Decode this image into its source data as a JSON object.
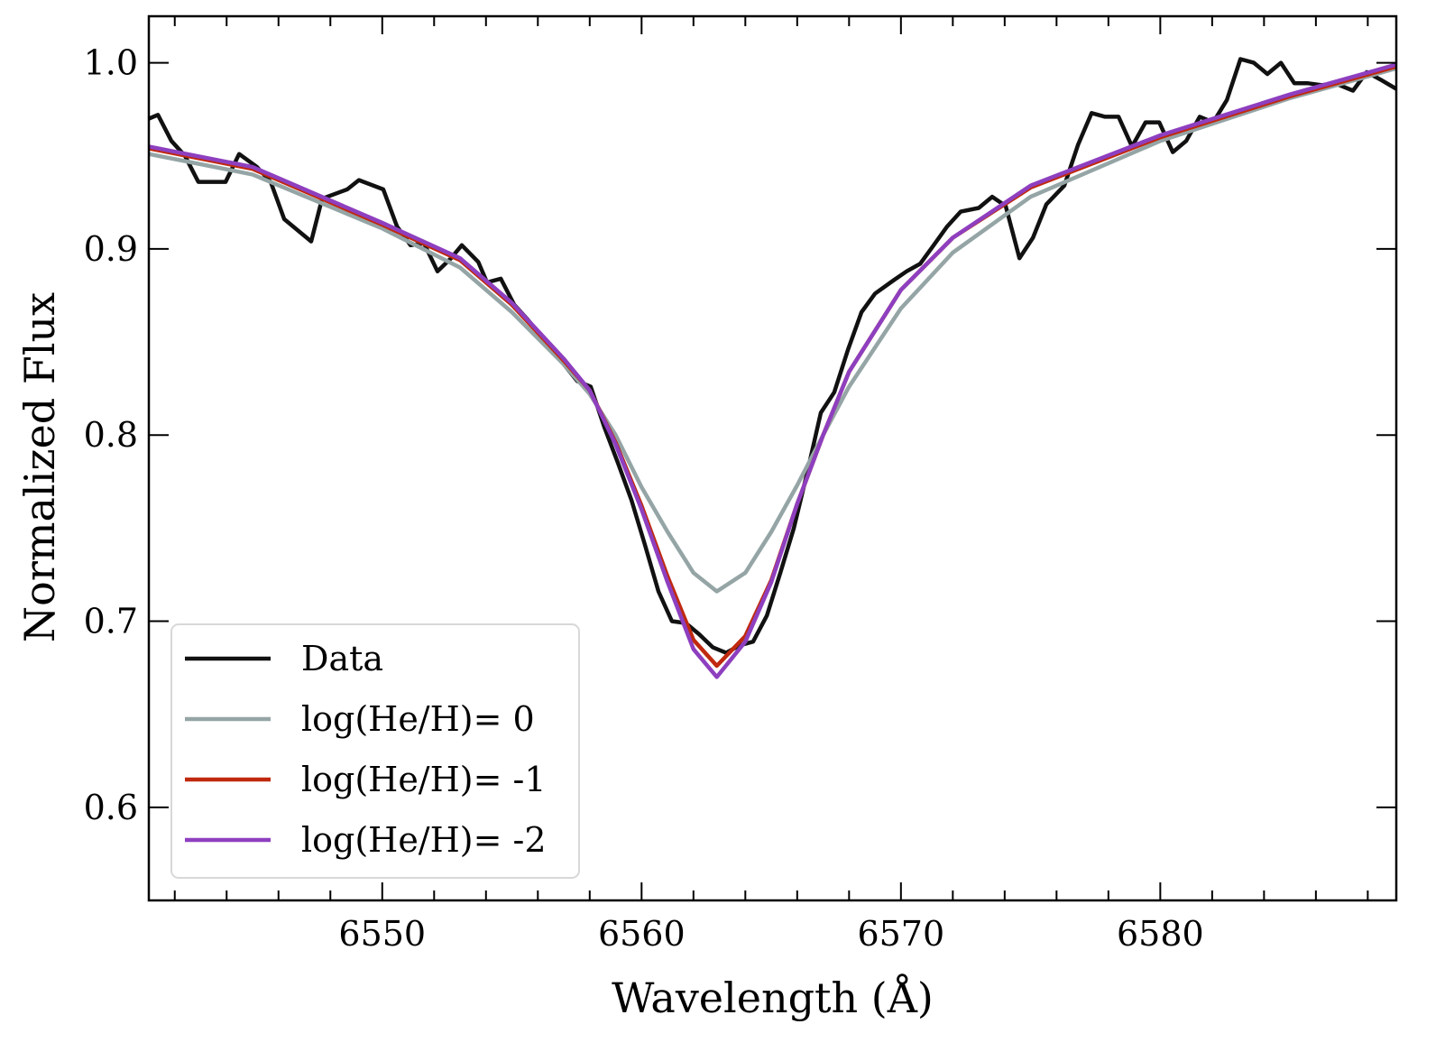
{
  "chart_data": {
    "type": "line",
    "title": "",
    "xlabel": "Wavelength (Å)",
    "ylabel": "Normalized Flux",
    "xlim": [
      6541,
      6589.1
    ],
    "ylim": [
      0.55,
      1.025
    ],
    "xticks": [
      6550,
      6560,
      6570,
      6580
    ],
    "xtick_labels": [
      "6550",
      "6560",
      "6570",
      "6580"
    ],
    "x_minor_step": 2,
    "yticks": [
      0.6,
      0.7,
      0.8,
      0.9,
      1.0
    ],
    "ytick_labels": [
      "0.6",
      "0.7",
      "0.8",
      "0.9",
      "1.0"
    ],
    "grid": false,
    "legend_position": "lower-left",
    "series": [
      {
        "name": "Data",
        "color": "#111111",
        "x": [
          6541.0,
          6541.35,
          6541.87,
          6542.39,
          6542.91,
          6543.96,
          6544.48,
          6545.17,
          6545.7,
          6546.22,
          6547.26,
          6547.68,
          6548.65,
          6549.1,
          6550.04,
          6550.57,
          6551.09,
          6551.61,
          6552.13,
          6552.65,
          6553.07,
          6553.7,
          6554.04,
          6554.57,
          6555.09,
          6555.61,
          6556.13,
          6556.83,
          6557.52,
          6558.04,
          6558.57,
          6559.09,
          6559.61,
          6560.13,
          6560.65,
          6561.17,
          6561.7,
          6562.22,
          6562.74,
          6563.26,
          6563.78,
          6564.3,
          6564.83,
          6565.35,
          6565.87,
          6566.39,
          6566.91,
          6567.43,
          6567.96,
          6568.48,
          6569.0,
          6569.7,
          6570.22,
          6570.74,
          6571.26,
          6571.78,
          6572.3,
          6573.0,
          6573.52,
          6574.04,
          6574.57,
          6575.09,
          6575.61,
          6576.3,
          6576.83,
          6577.35,
          6577.87,
          6578.39,
          6578.91,
          6579.43,
          6579.96,
          6580.48,
          6581.0,
          6581.52,
          6582.04,
          6582.57,
          6583.09,
          6583.61,
          6584.13,
          6584.65,
          6585.17,
          6585.7,
          6586.22,
          6586.74,
          6587.43,
          6587.96,
          6588.48,
          6589.1
        ],
        "y": [
          0.97,
          0.972,
          0.958,
          0.95,
          0.936,
          0.936,
          0.951,
          0.944,
          0.936,
          0.916,
          0.904,
          0.927,
          0.932,
          0.937,
          0.932,
          0.912,
          0.902,
          0.903,
          0.888,
          0.895,
          0.902,
          0.893,
          0.882,
          0.884,
          0.87,
          0.862,
          0.853,
          0.841,
          0.829,
          0.826,
          0.804,
          0.785,
          0.765,
          0.741,
          0.716,
          0.7,
          0.699,
          0.693,
          0.686,
          0.683,
          0.687,
          0.689,
          0.703,
          0.726,
          0.75,
          0.78,
          0.812,
          0.823,
          0.846,
          0.866,
          0.876,
          0.883,
          0.888,
          0.892,
          0.902,
          0.912,
          0.92,
          0.922,
          0.928,
          0.923,
          0.895,
          0.906,
          0.924,
          0.934,
          0.956,
          0.973,
          0.971,
          0.971,
          0.955,
          0.968,
          0.968,
          0.952,
          0.958,
          0.971,
          0.968,
          0.98,
          1.002,
          1.0,
          0.994,
          1.0,
          0.989,
          0.989,
          0.988,
          0.989,
          0.985,
          0.995,
          0.991,
          0.986
        ]
      },
      {
        "name": "log(He/H)= 0",
        "color": "#95a5a6",
        "x": [
          6541,
          6545,
          6550,
          6553,
          6555,
          6557,
          6558,
          6559,
          6560,
          6561,
          6562,
          6562.9,
          6564,
          6565,
          6566,
          6567,
          6568,
          6570,
          6572,
          6575,
          6580,
          6585,
          6589.1
        ],
        "y": [
          0.951,
          0.94,
          0.911,
          0.89,
          0.866,
          0.838,
          0.822,
          0.8,
          0.772,
          0.748,
          0.726,
          0.716,
          0.726,
          0.748,
          0.773,
          0.8,
          0.826,
          0.868,
          0.898,
          0.928,
          0.958,
          0.981,
          0.997
        ]
      },
      {
        "name": "log(He/H)= -1",
        "color": "#c0290f",
        "x": [
          6541,
          6545,
          6550,
          6553,
          6555,
          6557,
          6558,
          6559,
          6560,
          6561,
          6562,
          6562.9,
          6564,
          6565,
          6566,
          6567,
          6568,
          6570,
          6572,
          6575,
          6580,
          6585,
          6589.1
        ],
        "y": [
          0.954,
          0.943,
          0.913,
          0.894,
          0.87,
          0.84,
          0.824,
          0.796,
          0.762,
          0.724,
          0.69,
          0.676,
          0.692,
          0.722,
          0.763,
          0.8,
          0.834,
          0.878,
          0.906,
          0.933,
          0.96,
          0.982,
          0.998
        ]
      },
      {
        "name": "log(He/H)= -2",
        "color": "#8e3fbf",
        "x": [
          6541,
          6545,
          6550,
          6553,
          6555,
          6557,
          6558,
          6559,
          6560,
          6561,
          6562,
          6562.9,
          6564,
          6565,
          6566,
          6567,
          6568,
          6570,
          6572,
          6575,
          6580,
          6585,
          6589.1
        ],
        "y": [
          0.955,
          0.944,
          0.914,
          0.895,
          0.871,
          0.841,
          0.824,
          0.795,
          0.76,
          0.721,
          0.685,
          0.67,
          0.689,
          0.721,
          0.763,
          0.8,
          0.834,
          0.878,
          0.906,
          0.934,
          0.961,
          0.983,
          0.999
        ]
      }
    ]
  }
}
